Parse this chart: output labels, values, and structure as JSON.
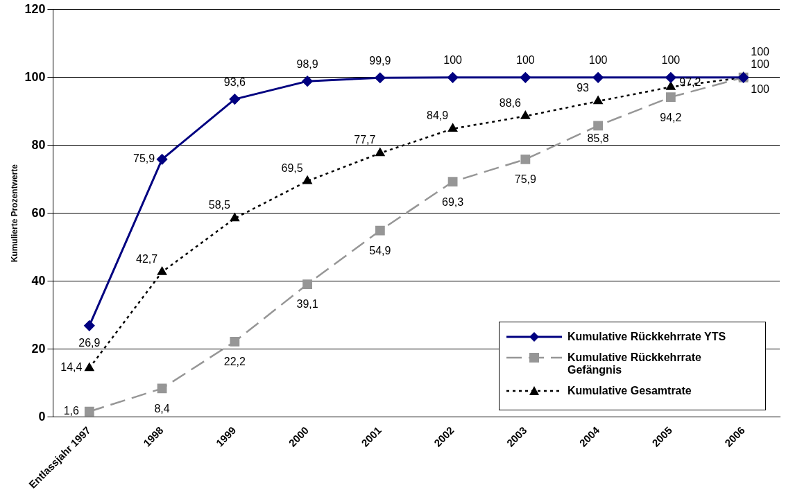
{
  "chart_data": {
    "type": "line",
    "ylabel": "Kumulierte Prozentwerte",
    "categories": [
      "Entlassjahr 1997",
      "1998",
      "1999",
      "2000",
      "2001",
      "2002",
      "2003",
      "2004",
      "2005",
      "2006"
    ],
    "series": [
      {
        "name": "Kumulative Rückkehrrate YTS",
        "color": "#000080",
        "marker": "diamond",
        "line_style": "solid",
        "values": [
          26.9,
          75.9,
          93.6,
          98.9,
          99.9,
          100,
          100,
          100,
          100,
          100
        ],
        "value_labels": [
          "26,9",
          "75,9",
          "93,6",
          "98,9",
          "99,9",
          "100",
          "100",
          "100",
          "100",
          "100"
        ]
      },
      {
        "name": "Kumulative Rückkehrrate Gefängnis",
        "color": "#969696",
        "marker": "square",
        "line_style": "dashed",
        "values": [
          1.6,
          8.4,
          22.2,
          39.1,
          54.9,
          69.3,
          75.9,
          85.8,
          94.2,
          100
        ],
        "value_labels": [
          "1,6",
          "8,4",
          "22,2",
          "39,1",
          "54,9",
          "69,3",
          "75,9",
          "85,8",
          "94,2",
          "100"
        ]
      },
      {
        "name": "Kumulative Gesamtrate",
        "color": "#000000",
        "marker": "triangle",
        "line_style": "dotted",
        "values": [
          14.4,
          42.7,
          58.5,
          69.5,
          77.7,
          84.9,
          88.6,
          93,
          97.2,
          100
        ],
        "value_labels": [
          "14,4",
          "42,7",
          "58,5",
          "69,5",
          "77,7",
          "84,9",
          "88,6",
          "93",
          "97,2",
          "100"
        ]
      }
    ],
    "ylim": [
      0,
      120
    ],
    "yticks": [
      0,
      20,
      40,
      60,
      80,
      100,
      120
    ],
    "grid": "y",
    "legend": "bottom right"
  }
}
